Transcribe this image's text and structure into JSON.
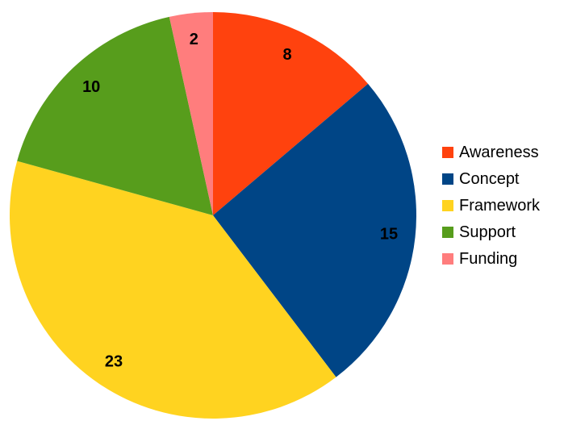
{
  "chart_data": {
    "type": "pie",
    "title": "",
    "categories": [
      "Awareness",
      "Concept",
      "Framework",
      "Support",
      "Funding"
    ],
    "values": [
      8,
      15,
      23,
      10,
      2
    ],
    "colors": [
      "#ff420e",
      "#004586",
      "#ffd320",
      "#579d1c",
      "#ff7d7d"
    ],
    "start_angle_deg": 0,
    "direction": "clockwise",
    "data_labels": [
      "8",
      "15",
      "23",
      "10",
      "2"
    ],
    "legend": {
      "placement": "right",
      "entries": [
        "Awareness",
        "Concept",
        "Framework",
        "Support",
        "Funding"
      ]
    }
  }
}
